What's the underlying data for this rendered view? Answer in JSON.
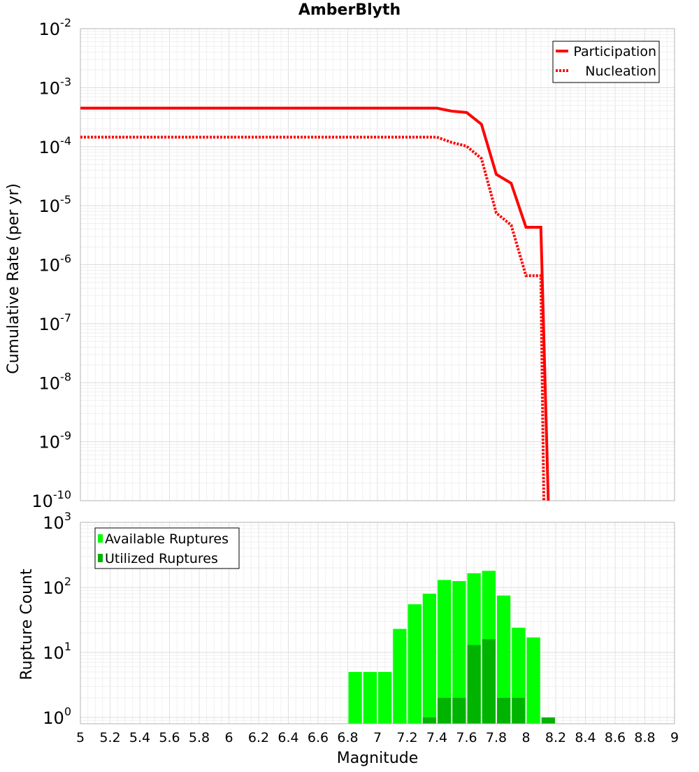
{
  "chart_data": [
    {
      "type": "line",
      "title": "AmberBlyth",
      "xlabel": "",
      "ylabel": "Cumulative Rate (per yr)",
      "yscale": "log",
      "xlim": [
        5,
        9
      ],
      "ylim": [
        1e-10,
        0.01
      ],
      "y_tick_labels": [
        {
          "base": "10",
          "exp": "-10"
        },
        {
          "base": "10",
          "exp": "-9"
        },
        {
          "base": "10",
          "exp": "-8"
        },
        {
          "base": "10",
          "exp": "-7"
        },
        {
          "base": "10",
          "exp": "-6"
        },
        {
          "base": "10",
          "exp": "-5"
        },
        {
          "base": "10",
          "exp": "-4"
        },
        {
          "base": "10",
          "exp": "-3"
        },
        {
          "base": "10",
          "exp": "-2"
        }
      ],
      "legend": {
        "position": "top-right"
      },
      "series": [
        {
          "name": "Participation",
          "style": "solid",
          "color": "#ff0000",
          "x": [
            5.0,
            7.4,
            7.5,
            7.6,
            7.7,
            7.8,
            7.9,
            8.0,
            8.1,
            8.15
          ],
          "y": [
            0.00045,
            0.00045,
            0.0004,
            0.00038,
            0.00024,
            3.4e-05,
            2.4e-05,
            4.3e-06,
            4.3e-06,
            1e-10
          ]
        },
        {
          "name": "Nucleation",
          "style": "dotted",
          "color": "#ff0000",
          "x": [
            5.0,
            7.4,
            7.5,
            7.6,
            7.7,
            7.8,
            7.9,
            8.0,
            8.1,
            8.12
          ],
          "y": [
            0.000145,
            0.000145,
            0.000118,
            0.000102,
            6.3e-05,
            7.5e-06,
            4.7e-06,
            6.5e-07,
            6.5e-07,
            1e-10
          ]
        }
      ]
    },
    {
      "type": "bar",
      "title": "",
      "xlabel": "Magnitude",
      "ylabel": "Rupture Count",
      "yscale": "log",
      "xlim": [
        5,
        9
      ],
      "ylim": [
        0.8,
        1000
      ],
      "x_ticks": [
        "5",
        "5.2",
        "5.4",
        "5.6",
        "5.8",
        "6",
        "6.2",
        "6.4",
        "6.6",
        "6.8",
        "7",
        "7.2",
        "7.4",
        "7.6",
        "7.8",
        "8",
        "8.2",
        "8.4",
        "8.6",
        "8.8",
        "9"
      ],
      "y_tick_labels": [
        {
          "base": "10",
          "exp": "0"
        },
        {
          "base": "10",
          "exp": "1"
        },
        {
          "base": "10",
          "exp": "2"
        },
        {
          "base": "10",
          "exp": "3"
        }
      ],
      "legend": {
        "position": "top-left"
      },
      "bin_width": 0.1,
      "series": [
        {
          "name": "Available Ruptures",
          "color": "#00ff00",
          "x": [
            6.85,
            6.95,
            7.05,
            7.15,
            7.25,
            7.35,
            7.45,
            7.55,
            7.65,
            7.75,
            7.85,
            7.95,
            8.05
          ],
          "values": [
            5,
            5,
            5,
            23,
            55,
            80,
            130,
            125,
            165,
            180,
            75,
            24,
            17
          ]
        },
        {
          "name": "Utilized Ruptures",
          "color": "#00b300",
          "x": [
            7.35,
            7.45,
            7.55,
            7.65,
            7.75,
            7.85,
            7.95,
            8.15
          ],
          "values": [
            1,
            2,
            2,
            13,
            16,
            2,
            2,
            1
          ]
        }
      ]
    }
  ]
}
